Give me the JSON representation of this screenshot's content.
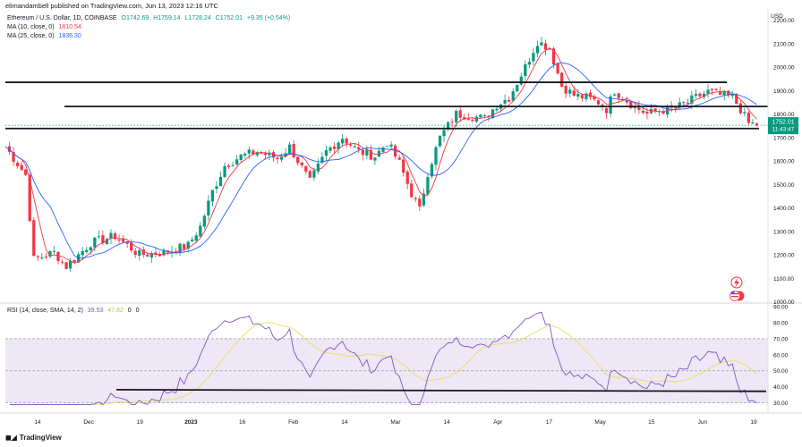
{
  "header": "elimandambell published on TradingView.com, Jun 13, 2023 12:16 UTC",
  "symbol": {
    "title": "Ethereum / U.S. Dollar, 1D, COINBASE",
    "open": "O1742.69",
    "high": "H1759.14",
    "low": "L1728.24",
    "close": "C1752.01",
    "change": "+9.35 (+0.54%)"
  },
  "ma10": {
    "label": "MA (10, close, 0)",
    "value": "1810.54",
    "color": "#f23645"
  },
  "ma25": {
    "label": "MA (25, close, 0)",
    "value": "1836.30",
    "color": "#2962ff"
  },
  "price_tag": {
    "price": "1752.01",
    "countdown": "11:43:47",
    "color": "#089981"
  },
  "currency": "USD",
  "rsi": {
    "label": "RSI (14, close, SMA, 14, 2)",
    "value1": "39.53",
    "value2": "47.82",
    "extra": [
      "0",
      "0"
    ]
  },
  "brand": "TradingView",
  "colors": {
    "up": "#089981",
    "down": "#f23645",
    "rsi": "#7e57c2",
    "rsi_ma": "#e8e05a",
    "band": "#ede7f6"
  },
  "chart_data": [
    {
      "type": "candlestick",
      "title": "Ethereum / U.S. Dollar, 1D, COINBASE",
      "x_ticks": [
        "14",
        "Dec",
        "19",
        "2023",
        "16",
        "Feb",
        "14",
        "Mar",
        "14",
        "Apr",
        "17",
        "May",
        "15",
        "Jun",
        "19"
      ],
      "y_ticks": [
        1000,
        1100,
        1200,
        1300,
        1400,
        1500,
        1600,
        1700,
        1800,
        1900,
        2000,
        2100,
        2200
      ],
      "ylim": [
        960,
        2240
      ],
      "last_price": 1752.01,
      "horizontal_lines": [
        1935,
        1832,
        1738
      ],
      "keypoints": [
        [
          0,
          1660
        ],
        [
          10,
          1540
        ],
        [
          14,
          1180
        ],
        [
          24,
          1210
        ],
        [
          30,
          1150
        ],
        [
          42,
          1250
        ],
        [
          54,
          1280
        ],
        [
          66,
          1200
        ],
        [
          78,
          1210
        ],
        [
          90,
          1240
        ],
        [
          96,
          1320
        ],
        [
          102,
          1470
        ],
        [
          108,
          1580
        ],
        [
          116,
          1620
        ],
        [
          124,
          1640
        ],
        [
          134,
          1610
        ],
        [
          140,
          1660
        ],
        [
          150,
          1510
        ],
        [
          158,
          1640
        ],
        [
          166,
          1700
        ],
        [
          174,
          1640
        ],
        [
          182,
          1620
        ],
        [
          188,
          1680
        ],
        [
          194,
          1590
        ],
        [
          200,
          1460
        ],
        [
          204,
          1390
        ],
        [
          208,
          1550
        ],
        [
          214,
          1700
        ],
        [
          222,
          1800
        ],
        [
          230,
          1790
        ],
        [
          236,
          1780
        ],
        [
          242,
          1840
        ],
        [
          248,
          1870
        ],
        [
          256,
          2000
        ],
        [
          262,
          2110
        ],
        [
          268,
          2080
        ],
        [
          274,
          1920
        ],
        [
          280,
          1880
        ],
        [
          286,
          1870
        ],
        [
          292,
          1850
        ],
        [
          296,
          1820
        ],
        [
          300,
          1900
        ],
        [
          304,
          1870
        ],
        [
          310,
          1830
        ],
        [
          316,
          1800
        ],
        [
          322,
          1815
        ],
        [
          328,
          1820
        ],
        [
          334,
          1840
        ],
        [
          340,
          1870
        ],
        [
          346,
          1895
        ],
        [
          352,
          1880
        ],
        [
          358,
          1870
        ],
        [
          362,
          1820
        ],
        [
          366,
          1760
        ],
        [
          370,
          1755
        ]
      ],
      "ma10_color": "#f23645",
      "ma25_color": "#2962ff"
    },
    {
      "type": "line",
      "title": "RSI (14, close, SMA, 14, 2)",
      "y_ticks": [
        30,
        40,
        50,
        60,
        70,
        80,
        90
      ],
      "ylim": [
        27,
        90
      ],
      "band": [
        30,
        70
      ],
      "midline": 50,
      "support_line": [
        37.2,
        38.2
      ]
    }
  ]
}
